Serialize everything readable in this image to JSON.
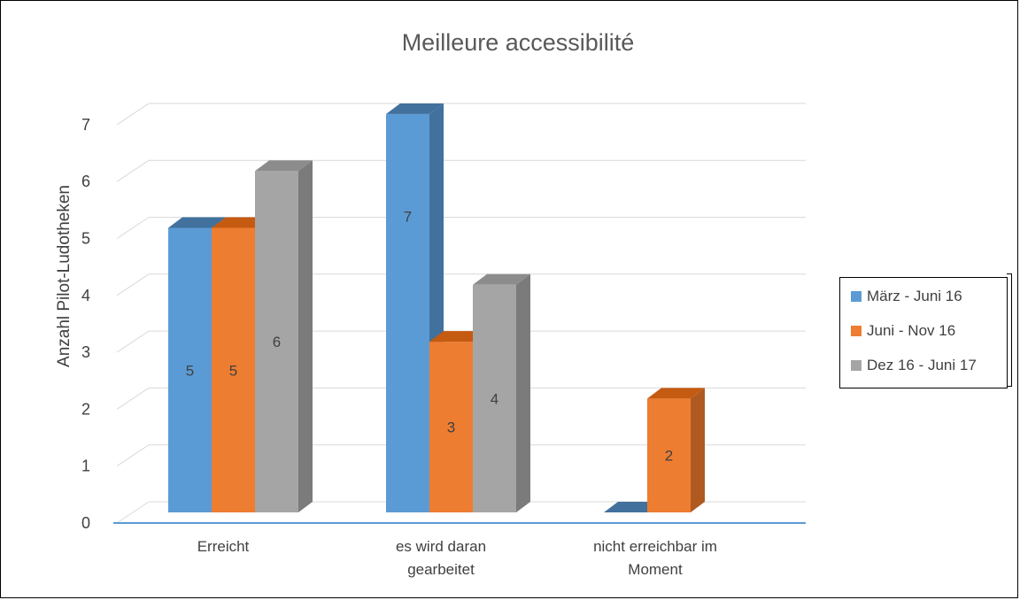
{
  "chart_data": {
    "type": "bar",
    "title": "Meilleure accessibilité",
    "ylabel": "Anzahl  Pilot-Ludotheken",
    "xlabel": "",
    "ylim": [
      0,
      7
    ],
    "yticks": [
      "0",
      "1",
      "2",
      "3",
      "4",
      "5",
      "6",
      "7"
    ],
    "categories": [
      [
        "Erreicht"
      ],
      [
        "es wird daran",
        "gearbeitet"
      ],
      [
        "nicht erreichbar im",
        "Moment"
      ]
    ],
    "series": [
      {
        "name": "März - Juni 16",
        "values": [
          5,
          7,
          0
        ],
        "labels": [
          "5",
          "7",
          ""
        ],
        "color": "#5B9BD5",
        "side": "#41719C",
        "top": "#41719C"
      },
      {
        "name": "Juni - Nov 16",
        "values": [
          5,
          3,
          2
        ],
        "labels": [
          "5",
          "3",
          "2"
        ],
        "color": "#ED7D31",
        "side": "#AE5A21",
        "top": "#C55A11"
      },
      {
        "name": "Dez 16 - Juni 17",
        "values": [
          6,
          4,
          null
        ],
        "labels": [
          "6",
          "4",
          ""
        ],
        "color": "#A5A5A5",
        "side": "#7B7B7B",
        "top": "#8C8C8C"
      }
    ],
    "grid": true,
    "legend_position": "right",
    "style": "3d-clustered-column"
  }
}
